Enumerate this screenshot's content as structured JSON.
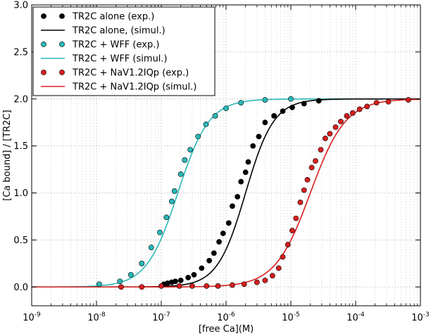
{
  "chart_data": {
    "type": "scatter",
    "xlabel": "[free Ca](M)",
    "ylabel": "[Ca bound] / [TR2C]",
    "xscale": "log",
    "xlim": [
      1e-09,
      0.001
    ],
    "ylim": [
      -0.2,
      3.0
    ],
    "yticks": [
      "0.0",
      "0.5",
      "1.0",
      "1.5",
      "2.0",
      "2.5",
      "3.0"
    ],
    "xticks": [
      {
        "base": "10",
        "exp": "-9"
      },
      {
        "base": "10",
        "exp": "-8"
      },
      {
        "base": "10",
        "exp": "-7"
      },
      {
        "base": "10",
        "exp": "-6"
      },
      {
        "base": "10",
        "exp": "-5"
      },
      {
        "base": "10",
        "exp": "-4"
      },
      {
        "base": "10",
        "exp": "-3"
      }
    ],
    "grid": true,
    "legend_position": "top-left",
    "legend": [
      {
        "label": "TR2C alone (exp.)",
        "color": "#000000",
        "kind": "markers"
      },
      {
        "label": "TR2C alone, (simul.)",
        "color": "#000000",
        "kind": "line"
      },
      {
        "label": "TR2C + WFF (exp.)",
        "color": "#2ab7b7",
        "kind": "markers"
      },
      {
        "label": "TR2C + WFF (simul.)",
        "color": "#2ab7b7",
        "kind": "line"
      },
      {
        "label": "TR2C + NaV1.2IQp (exp.)",
        "color": "#d81e1e",
        "kind": "markers"
      },
      {
        "label": "TR2C + NaV1.2IQp (simul.)",
        "color": "#d81e1e",
        "kind": "line"
      }
    ],
    "series": [
      {
        "color": "#2ab7b7",
        "kind": "line",
        "kd": 1.8e-07,
        "hill": 1.8,
        "ymax": 2.0
      },
      {
        "color": "#000000",
        "kind": "line",
        "kd": 2e-06,
        "hill": 2.0,
        "ymax": 2.0
      },
      {
        "color": "#d81e1e",
        "kind": "line",
        "kd": 2e-05,
        "hill": 1.6,
        "ymax": 2.0
      },
      {
        "color": "#2ab7b7",
        "kind": "markers",
        "points": [
          [
            1.1e-08,
            0.03
          ],
          [
            2.3e-08,
            0.06
          ],
          [
            3.4e-08,
            0.13
          ],
          [
            5e-08,
            0.25
          ],
          [
            7e-08,
            0.42
          ],
          [
            9.5e-08,
            0.58
          ],
          [
            1.2e-07,
            0.74
          ],
          [
            1.45e-07,
            0.91
          ],
          [
            1.6e-07,
            1.02
          ],
          [
            2e-07,
            1.2
          ],
          [
            2.3e-07,
            1.35
          ],
          [
            2.8e-07,
            1.46
          ],
          [
            3.7e-07,
            1.6
          ],
          [
            4.9e-07,
            1.73
          ],
          [
            6.8e-07,
            1.82
          ],
          [
            1e-06,
            1.9
          ],
          [
            1.7e-06,
            1.96
          ],
          [
            4e-06,
            1.99
          ],
          [
            1e-05,
            2.0
          ]
        ]
      },
      {
        "color": "#000000",
        "kind": "markers",
        "points": [
          [
            1.1e-07,
            0.03
          ],
          [
            1.25e-07,
            0.04
          ],
          [
            1.45e-07,
            0.05
          ],
          [
            1.65e-07,
            0.06
          ],
          [
            2e-07,
            0.07
          ],
          [
            2.6e-07,
            0.1
          ],
          [
            3.2e-07,
            0.13
          ],
          [
            4.2e-07,
            0.2
          ],
          [
            5.5e-07,
            0.28
          ],
          [
            6.5e-07,
            0.36
          ],
          [
            7.8e-07,
            0.48
          ],
          [
            9e-07,
            0.57
          ],
          [
            1.1e-06,
            0.68
          ],
          [
            1.25e-06,
            0.86
          ],
          [
            1.5e-06,
            0.96
          ],
          [
            1.7e-06,
            1.12
          ],
          [
            2e-06,
            1.22
          ],
          [
            2.2e-06,
            1.33
          ],
          [
            2.6e-06,
            1.5
          ],
          [
            3.2e-06,
            1.6
          ],
          [
            4e-06,
            1.75
          ],
          [
            5.5e-06,
            1.82
          ],
          [
            7.5e-06,
            1.87
          ],
          [
            1.05e-05,
            1.91
          ],
          [
            1.6e-05,
            1.95
          ],
          [
            2.7e-05,
            1.98
          ]
        ]
      },
      {
        "color": "#d81e1e",
        "kind": "markers",
        "points": [
          [
            2.4e-08,
            0.0
          ],
          [
            5e-08,
            0.0
          ],
          [
            1e-07,
            0.01
          ],
          [
            1.9e-07,
            0.01
          ],
          [
            3e-07,
            0.01
          ],
          [
            5e-07,
            0.01
          ],
          [
            7.5e-07,
            0.01
          ],
          [
            1.25e-06,
            0.02
          ],
          [
            1.9e-06,
            0.03
          ],
          [
            3e-06,
            0.05
          ],
          [
            4e-06,
            0.07
          ],
          [
            5.2e-06,
            0.12
          ],
          [
            6.5e-06,
            0.2
          ],
          [
            7.5e-06,
            0.32
          ],
          [
            9e-06,
            0.45
          ],
          [
            1.05e-05,
            0.6
          ],
          [
            1.2e-05,
            0.73
          ],
          [
            1.4e-05,
            0.9
          ],
          [
            1.6e-05,
            1.03
          ],
          [
            1.8e-05,
            1.14
          ],
          [
            2.1e-05,
            1.27
          ],
          [
            2.4e-05,
            1.34
          ],
          [
            2.9e-05,
            1.46
          ],
          [
            3.4e-05,
            1.58
          ],
          [
            4e-05,
            1.63
          ],
          [
            4.9e-05,
            1.7
          ],
          [
            5.9e-05,
            1.76
          ],
          [
            7.3e-05,
            1.82
          ],
          [
            9e-05,
            1.85
          ],
          [
            0.000115,
            1.89
          ],
          [
            0.00015,
            1.92
          ],
          [
            0.00021,
            1.96
          ],
          [
            0.00032,
            1.97
          ],
          [
            0.00065,
            1.99
          ]
        ]
      }
    ]
  }
}
